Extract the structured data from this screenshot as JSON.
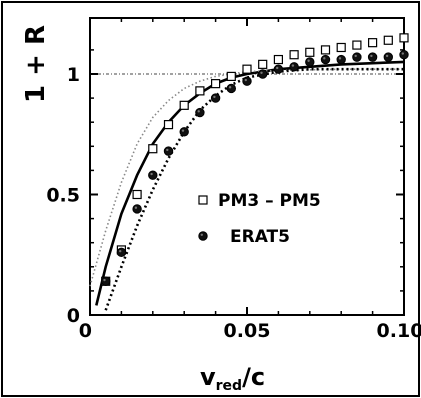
{
  "chart_data": {
    "type": "scatter",
    "xlabel": "v",
    "xlabel_sub": "red",
    "xlabel_suffix": "/c",
    "ylabel": "1 + R",
    "xlim": [
      0,
      0.1
    ],
    "ylim": [
      0,
      1.2
    ],
    "x_ticks": [
      {
        "value": 0,
        "label": "0"
      },
      {
        "value": 0.05,
        "label": "0.05"
      },
      {
        "value": 0.1,
        "label": "0.10"
      }
    ],
    "y_ticks": [
      {
        "value": 0,
        "label": "0"
      },
      {
        "value": 0.5,
        "label": "0.5"
      },
      {
        "value": 1,
        "label": "1"
      }
    ],
    "reference_line": {
      "y": 1,
      "style": "dash-dot"
    },
    "series": [
      {
        "name": "PM3 – PM5",
        "marker": "open-square",
        "points": [
          [
            0.005,
            0.14
          ],
          [
            0.01,
            0.27
          ],
          [
            0.015,
            0.5
          ],
          [
            0.02,
            0.69
          ],
          [
            0.025,
            0.79
          ],
          [
            0.03,
            0.87
          ],
          [
            0.035,
            0.93
          ],
          [
            0.04,
            0.96
          ],
          [
            0.045,
            0.99
          ],
          [
            0.05,
            1.02
          ],
          [
            0.055,
            1.04
          ],
          [
            0.06,
            1.06
          ],
          [
            0.065,
            1.08
          ],
          [
            0.07,
            1.09
          ],
          [
            0.075,
            1.1
          ],
          [
            0.08,
            1.11
          ],
          [
            0.085,
            1.12
          ],
          [
            0.09,
            1.13
          ],
          [
            0.095,
            1.14
          ],
          [
            0.1,
            1.15
          ]
        ]
      },
      {
        "name": "ERAT5",
        "marker": "filled-circle",
        "points": [
          [
            0.005,
            0.14
          ],
          [
            0.01,
            0.26
          ],
          [
            0.015,
            0.44
          ],
          [
            0.02,
            0.58
          ],
          [
            0.025,
            0.68
          ],
          [
            0.03,
            0.76
          ],
          [
            0.035,
            0.84
          ],
          [
            0.04,
            0.9
          ],
          [
            0.045,
            0.94
          ],
          [
            0.05,
            0.97
          ],
          [
            0.055,
            1.0
          ],
          [
            0.06,
            1.02
          ],
          [
            0.065,
            1.03
          ],
          [
            0.07,
            1.05
          ],
          [
            0.075,
            1.06
          ],
          [
            0.08,
            1.06
          ],
          [
            0.085,
            1.07
          ],
          [
            0.09,
            1.07
          ],
          [
            0.095,
            1.07
          ],
          [
            0.1,
            1.08
          ]
        ]
      }
    ],
    "curves": [
      {
        "style": "solid",
        "points": [
          [
            0.002,
            0.04
          ],
          [
            0.005,
            0.2
          ],
          [
            0.01,
            0.42
          ],
          [
            0.015,
            0.58
          ],
          [
            0.02,
            0.71
          ],
          [
            0.025,
            0.8
          ],
          [
            0.03,
            0.87
          ],
          [
            0.035,
            0.92
          ],
          [
            0.04,
            0.96
          ],
          [
            0.045,
            0.985
          ],
          [
            0.05,
            1.0
          ],
          [
            0.06,
            1.02
          ],
          [
            0.07,
            1.03
          ],
          [
            0.08,
            1.04
          ],
          [
            0.09,
            1.045
          ],
          [
            0.1,
            1.05
          ]
        ]
      },
      {
        "style": "dotted-light",
        "points": [
          [
            0.0,
            0.12
          ],
          [
            0.005,
            0.35
          ],
          [
            0.01,
            0.55
          ],
          [
            0.015,
            0.71
          ],
          [
            0.02,
            0.82
          ],
          [
            0.025,
            0.89
          ],
          [
            0.03,
            0.94
          ],
          [
            0.035,
            0.97
          ],
          [
            0.04,
            0.99
          ],
          [
            0.05,
            1.01
          ],
          [
            0.06,
            1.015
          ],
          [
            0.08,
            1.02
          ],
          [
            0.1,
            1.02
          ]
        ]
      },
      {
        "style": "dotted-heavy",
        "points": [
          [
            0.005,
            0.02
          ],
          [
            0.01,
            0.2
          ],
          [
            0.015,
            0.37
          ],
          [
            0.02,
            0.52
          ],
          [
            0.025,
            0.65
          ],
          [
            0.03,
            0.76
          ],
          [
            0.035,
            0.85
          ],
          [
            0.04,
            0.91
          ],
          [
            0.045,
            0.955
          ],
          [
            0.05,
            0.985
          ],
          [
            0.06,
            1.01
          ],
          [
            0.07,
            1.02
          ],
          [
            0.08,
            1.02
          ],
          [
            0.09,
            1.02
          ],
          [
            0.1,
            1.02
          ]
        ]
      }
    ],
    "legend": [
      {
        "label": "PM3 – PM5",
        "marker": "open-square"
      },
      {
        "label": "ERAT5",
        "marker": "filled-circle"
      }
    ],
    "legend_position": "center-right"
  }
}
